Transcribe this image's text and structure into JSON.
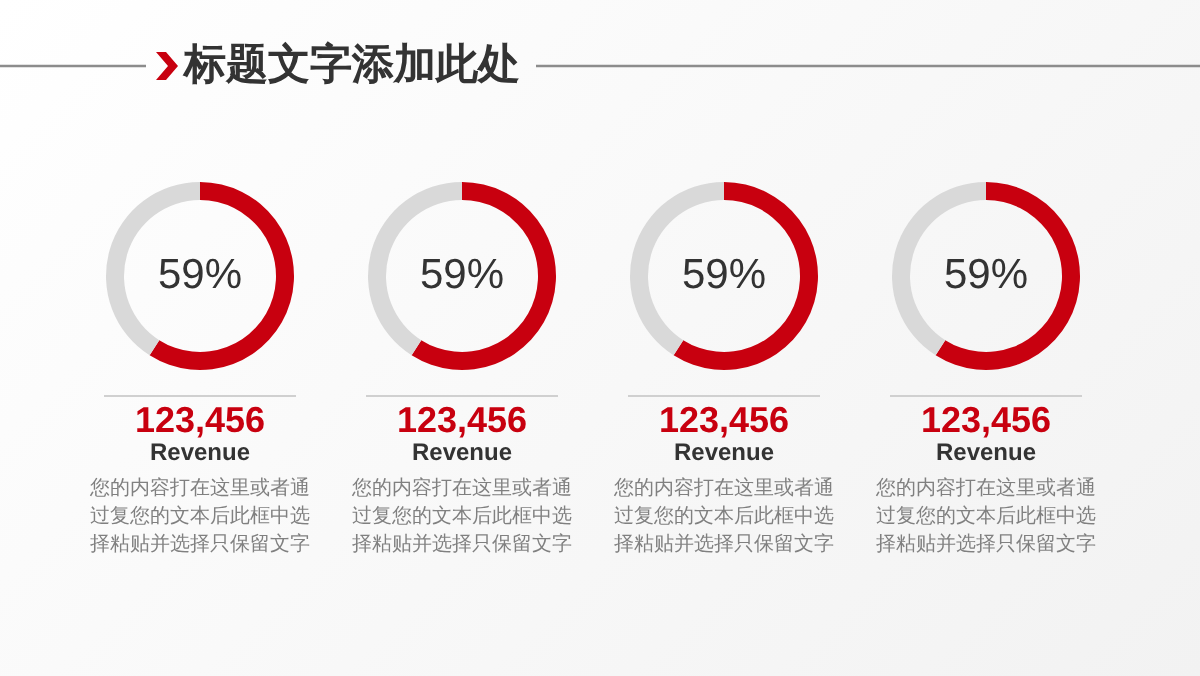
{
  "chart_data": [
    {
      "type": "donut",
      "title": "标题文字添加此处",
      "categories": [
        null,
        null
      ],
      "values": [
        59,
        41
      ],
      "colors": [
        "#c8000f",
        "#d9d9d9"
      ],
      "value_labels": [
        "59%",
        null
      ],
      "annotations": [
        "123,456",
        "Revenue",
        "您的内容打在这里或者通过复您的文本后此框中选择粘贴并选择只保留文字"
      ]
    },
    {
      "type": "donut",
      "categories": [
        null,
        null
      ],
      "values": [
        59,
        41
      ],
      "colors": [
        "#c8000f",
        "#d9d9d9"
      ],
      "value_labels": [
        "59%",
        null
      ],
      "annotations": [
        "123,456",
        "Revenue",
        "您的内容打在这里或者通过复您的文本后此框中选择粘贴并选择只保留文字"
      ]
    },
    {
      "type": "donut",
      "categories": [
        null,
        null
      ],
      "values": [
        59,
        41
      ],
      "colors": [
        "#c8000f",
        "#d9d9d9"
      ],
      "value_labels": [
        "59%",
        null
      ],
      "annotations": [
        "123,456",
        "Revenue",
        "您的内容打在这里或者通过复您的文本后此框中选择粘贴并选择只保留文字"
      ]
    },
    {
      "type": "donut",
      "categories": [
        null,
        null
      ],
      "values": [
        59,
        41
      ],
      "colors": [
        "#c8000f",
        "#d9d9d9"
      ],
      "value_labels": [
        "59%",
        null
      ],
      "annotations": [
        "123,456",
        "Revenue",
        "您的内容打在这里或者通过复您的文本后此框中选择粘贴并选择只保留文字"
      ]
    }
  ]
}
